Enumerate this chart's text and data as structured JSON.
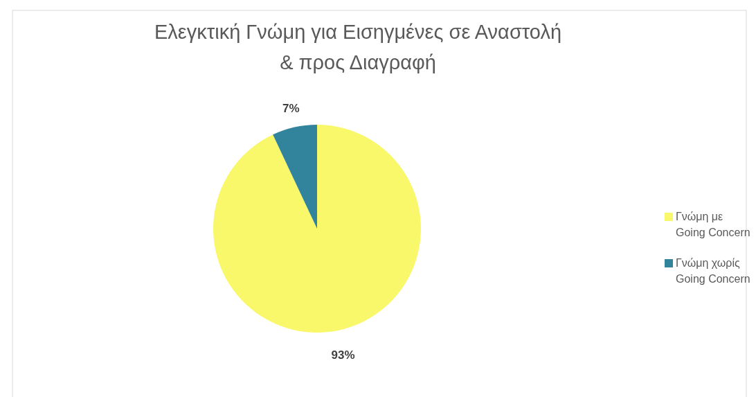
{
  "chart_data": {
    "type": "pie",
    "title": "Ελεγκτική Γνώμη για Εισηγμένες σε Αναστολή\n& προς Διαγραφή",
    "categories": [
      "Γνώμη με Going Concern",
      "Γνώμη χωρίς Going Concern"
    ],
    "values": [
      93,
      7
    ],
    "colors": [
      "#f8f86a",
      "#31849b"
    ],
    "value_labels": [
      "93%",
      "7%"
    ],
    "legend": "right"
  }
}
